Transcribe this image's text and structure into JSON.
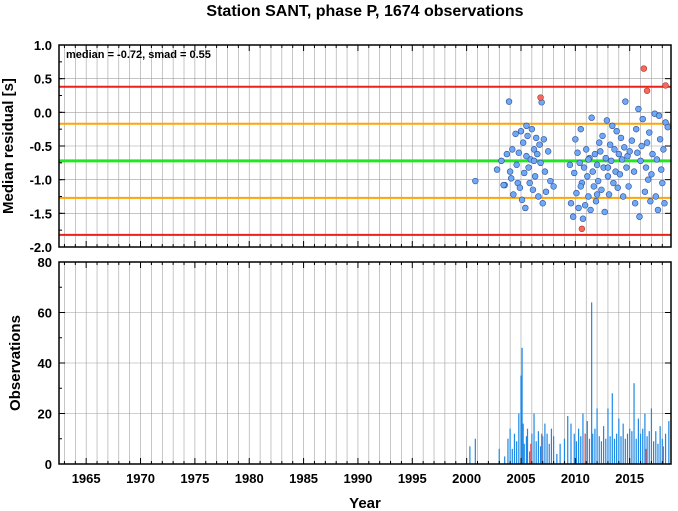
{
  "title": "Station SANT, phase P, 1674 observations",
  "annotation": "median = -0.72, smad = 0.55",
  "chart_data": [
    {
      "type": "scatter",
      "ylabel": "Median residual [s]",
      "xlim": [
        1962.5,
        2018.8
      ],
      "ylim": [
        -2.0,
        1.0
      ],
      "yticks": [
        "1.0",
        "0.5",
        "0.0",
        "-0.5",
        "-1.0",
        "-1.5",
        "-2.0"
      ],
      "grid": true,
      "reference_lines": [
        {
          "name": "upper-outer",
          "y": 0.38,
          "color": "#e8221b"
        },
        {
          "name": "upper-inner",
          "y": -0.17,
          "color": "#ffa500"
        },
        {
          "name": "median",
          "y": -0.72,
          "color": "#22e622"
        },
        {
          "name": "lower-inner",
          "y": -1.27,
          "color": "#ffa500"
        },
        {
          "name": "lower-outer",
          "y": -1.82,
          "color": "#e8221b"
        }
      ],
      "colors": {
        "normal": "#6fa8f5",
        "outlier": "#f46a5e"
      },
      "points": [
        [
          2000.8,
          -1.02
        ],
        [
          2002.8,
          -0.85
        ],
        [
          2003.2,
          -0.72
        ],
        [
          2003.5,
          -1.08
        ],
        [
          2003.7,
          -0.62
        ],
        [
          2003.9,
          0.16
        ],
        [
          2004.1,
          -0.98
        ],
        [
          2004.2,
          -0.55
        ],
        [
          2004.3,
          -1.22
        ],
        [
          2004.5,
          -0.32
        ],
        [
          2004.6,
          -0.78
        ],
        [
          2004.7,
          -1.05
        ],
        [
          2004.8,
          -0.6
        ],
        [
          2004.9,
          -1.12
        ],
        [
          2005.0,
          -0.28
        ],
        [
          2005.1,
          -1.3
        ],
        [
          2005.2,
          -0.45
        ],
        [
          2005.3,
          -0.9
        ],
        [
          2005.4,
          -1.42
        ],
        [
          2005.5,
          -0.65
        ],
        [
          2005.6,
          -0.35
        ],
        [
          2005.7,
          -0.82
        ],
        [
          2005.8,
          -1.05
        ],
        [
          2005.9,
          -0.7
        ],
        [
          2006.0,
          -0.25
        ],
        [
          2006.1,
          -1.15
        ],
        [
          2006.2,
          -0.55
        ],
        [
          2006.3,
          -0.95
        ],
        [
          2006.4,
          -0.38
        ],
        [
          2006.5,
          -0.62
        ],
        [
          2006.6,
          -1.25
        ],
        [
          2006.7,
          -0.48
        ],
        [
          2006.8,
          -0.75
        ],
        [
          2006.9,
          0.15
        ],
        [
          2007.0,
          -1.35
        ],
        [
          2007.1,
          -0.4
        ],
        [
          2007.2,
          -0.88
        ],
        [
          2007.3,
          -1.18
        ],
        [
          2007.5,
          -0.58
        ],
        [
          2007.7,
          -1.02
        ],
        [
          2008.0,
          -1.1
        ],
        [
          2005.5,
          -0.2
        ],
        [
          2006.2,
          -0.72
        ],
        [
          2003.4,
          -1.08
        ],
        [
          2004.0,
          -0.88
        ],
        [
          2009.8,
          -1.55
        ],
        [
          2009.9,
          -0.9
        ],
        [
          2010.0,
          -0.4
        ],
        [
          2010.1,
          -1.2
        ],
        [
          2010.2,
          -0.6
        ],
        [
          2010.3,
          -1.42
        ],
        [
          2010.4,
          -0.75
        ],
        [
          2010.5,
          -0.25
        ],
        [
          2010.6,
          -1.05
        ],
        [
          2010.7,
          -1.58
        ],
        [
          2010.8,
          -0.82
        ],
        [
          2010.9,
          -1.38
        ],
        [
          2011.0,
          -0.55
        ],
        [
          2011.1,
          -0.95
        ],
        [
          2011.2,
          -1.25
        ],
        [
          2011.3,
          -0.68
        ],
        [
          2011.4,
          -1.45
        ],
        [
          2011.5,
          -0.08
        ],
        [
          2011.6,
          -0.88
        ],
        [
          2011.7,
          -1.1
        ],
        [
          2011.8,
          -0.62
        ],
        [
          2011.9,
          -1.32
        ],
        [
          2012.0,
          -0.78
        ],
        [
          2012.1,
          -1.02
        ],
        [
          2012.2,
          -0.45
        ],
        [
          2012.3,
          -0.58
        ],
        [
          2012.4,
          -1.15
        ],
        [
          2012.5,
          -0.35
        ],
        [
          2012.6,
          -0.82
        ],
        [
          2012.7,
          -1.48
        ],
        [
          2012.8,
          -0.68
        ],
        [
          2012.9,
          -0.12
        ],
        [
          2013.0,
          -0.95
        ],
        [
          2013.1,
          -1.22
        ],
        [
          2013.2,
          -0.48
        ],
        [
          2013.3,
          -0.72
        ],
        [
          2013.4,
          -0.2
        ],
        [
          2013.5,
          -1.05
        ],
        [
          2013.6,
          -0.55
        ],
        [
          2013.7,
          -0.88
        ],
        [
          2013.8,
          -0.28
        ],
        [
          2013.9,
          -1.12
        ],
        [
          2014.0,
          -0.62
        ],
        [
          2014.1,
          -0.92
        ],
        [
          2014.2,
          -0.38
        ],
        [
          2014.3,
          -0.7
        ],
        [
          2014.4,
          -1.25
        ],
        [
          2014.5,
          -0.52
        ],
        [
          2014.6,
          0.16
        ],
        [
          2014.7,
          -0.82
        ],
        [
          2014.8,
          -0.65
        ],
        [
          2014.9,
          -1.1
        ],
        [
          2015.0,
          -0.58
        ],
        [
          2015.2,
          -0.42
        ],
        [
          2015.4,
          -0.88
        ],
        [
          2015.5,
          -1.35
        ],
        [
          2015.6,
          -0.25
        ],
        [
          2015.7,
          -0.6
        ],
        [
          2015.8,
          0.05
        ],
        [
          2015.9,
          -1.55
        ],
        [
          2016.0,
          -0.72
        ],
        [
          2016.1,
          -0.5
        ],
        [
          2016.2,
          -0.1
        ],
        [
          2016.4,
          -1.18
        ],
        [
          2016.5,
          -0.82
        ],
        [
          2016.6,
          -0.45
        ],
        [
          2016.7,
          -1.0
        ],
        [
          2016.8,
          -0.3
        ],
        [
          2017.0,
          -0.92
        ],
        [
          2017.1,
          -0.62
        ],
        [
          2017.3,
          -0.02
        ],
        [
          2017.4,
          -1.25
        ],
        [
          2017.5,
          -0.7
        ],
        [
          2017.6,
          -1.45
        ],
        [
          2017.8,
          -0.4
        ],
        [
          2017.9,
          -0.85
        ],
        [
          2018.0,
          -1.05
        ],
        [
          2018.1,
          -0.55
        ],
        [
          2018.3,
          -0.15
        ],
        [
          2018.5,
          -0.22
        ],
        [
          2018.2,
          -1.35
        ],
        [
          2017.7,
          -0.05
        ],
        [
          2016.9,
          -1.32
        ],
        [
          2013.0,
          -0.82
        ],
        [
          2012.0,
          -1.22
        ],
        [
          2011.2,
          -0.7
        ],
        [
          2010.5,
          -1.1
        ],
        [
          2009.6,
          -1.35
        ],
        [
          2009.5,
          -0.78
        ]
      ],
      "outliers": [
        [
          2006.8,
          0.22
        ],
        [
          2010.6,
          -1.73
        ],
        [
          2016.3,
          0.65
        ],
        [
          2016.6,
          0.32
        ],
        [
          2018.3,
          0.4
        ]
      ]
    },
    {
      "type": "bar",
      "xlabel": "Year",
      "ylabel": "Observations",
      "xlim": [
        1962.5,
        2018.8
      ],
      "ylim": [
        0,
        80
      ],
      "yticks": [
        "0",
        "20",
        "40",
        "60",
        "80"
      ],
      "xticks": [
        "1965",
        "1970",
        "1975",
        "1980",
        "1985",
        "1990",
        "1995",
        "2000",
        "2005",
        "2010",
        "2015"
      ],
      "grid": true,
      "colors": {
        "normal": "#1e88e5",
        "outlier": "#ef5350"
      },
      "bars": [
        [
          2000.3,
          7
        ],
        [
          2000.8,
          10
        ],
        [
          2003.0,
          6
        ],
        [
          2003.5,
          3
        ],
        [
          2003.8,
          10
        ],
        [
          2004.0,
          14
        ],
        [
          2004.2,
          6
        ],
        [
          2004.4,
          12
        ],
        [
          2004.6,
          9
        ],
        [
          2004.8,
          20
        ],
        [
          2005.0,
          35
        ],
        [
          2005.1,
          46
        ],
        [
          2005.2,
          16
        ],
        [
          2005.3,
          8
        ],
        [
          2005.5,
          11
        ],
        [
          2005.6,
          14
        ],
        [
          2005.8,
          5
        ],
        [
          2006.0,
          12
        ],
        [
          2006.2,
          20
        ],
        [
          2006.4,
          9
        ],
        [
          2006.6,
          13
        ],
        [
          2006.8,
          7
        ],
        [
          2007.0,
          11
        ],
        [
          2007.2,
          16
        ],
        [
          2007.4,
          12
        ],
        [
          2007.6,
          8
        ],
        [
          2007.8,
          14
        ],
        [
          2008.0,
          11
        ],
        [
          2008.3,
          4
        ],
        [
          2008.6,
          8
        ],
        [
          2009.0,
          10
        ],
        [
          2009.3,
          19
        ],
        [
          2009.6,
          16
        ],
        [
          2009.9,
          12
        ],
        [
          2010.1,
          9
        ],
        [
          2010.3,
          14
        ],
        [
          2010.5,
          11
        ],
        [
          2010.7,
          20
        ],
        [
          2010.9,
          12
        ],
        [
          2011.1,
          17
        ],
        [
          2011.3,
          10
        ],
        [
          2011.5,
          64
        ],
        [
          2011.6,
          12
        ],
        [
          2011.8,
          14
        ],
        [
          2012.0,
          22
        ],
        [
          2012.2,
          11
        ],
        [
          2012.4,
          9
        ],
        [
          2012.6,
          15
        ],
        [
          2012.8,
          10
        ],
        [
          2013.0,
          22
        ],
        [
          2013.2,
          11
        ],
        [
          2013.4,
          28
        ],
        [
          2013.6,
          10
        ],
        [
          2013.8,
          12
        ],
        [
          2014.0,
          18
        ],
        [
          2014.2,
          11
        ],
        [
          2014.4,
          16
        ],
        [
          2014.6,
          10
        ],
        [
          2014.8,
          12
        ],
        [
          2015.0,
          14
        ],
        [
          2015.2,
          13
        ],
        [
          2015.4,
          32
        ],
        [
          2015.6,
          10
        ],
        [
          2015.8,
          18
        ],
        [
          2016.0,
          12
        ],
        [
          2016.2,
          14
        ],
        [
          2016.4,
          20
        ],
        [
          2016.6,
          11
        ],
        [
          2016.8,
          13
        ],
        [
          2017.0,
          22
        ],
        [
          2017.2,
          9
        ],
        [
          2017.4,
          13
        ],
        [
          2017.6,
          8
        ],
        [
          2017.8,
          15
        ],
        [
          2018.0,
          10
        ],
        [
          2018.3,
          12
        ],
        [
          2018.6,
          17
        ]
      ],
      "outlier_bars": [
        [
          2005.9,
          8
        ],
        [
          2006.9,
          12
        ],
        [
          2010.9,
          12
        ],
        [
          2016.5,
          6
        ],
        [
          2018.1,
          7
        ]
      ]
    }
  ]
}
